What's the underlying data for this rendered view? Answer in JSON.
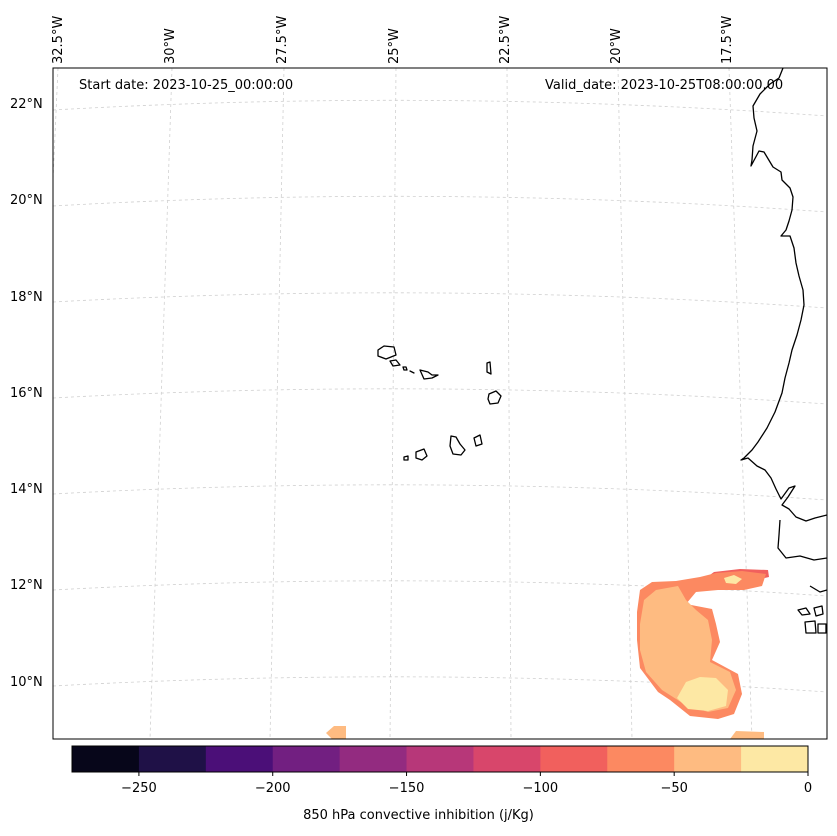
{
  "map": {
    "start_label": "Start date: 2023-10-25_00:00:00",
    "valid_label": "Valid_date: 2023-10-25T08:00:00.00",
    "lon_labels": [
      "32.5°W",
      "30°W",
      "27.5°W",
      "25°W",
      "22.5°W",
      "20°W",
      "17.5°W"
    ],
    "lat_labels": [
      "22°N",
      "20°N",
      "18°N",
      "16°N",
      "14°N",
      "12°N",
      "10°N"
    ],
    "extent": {
      "lon_min": -33.0,
      "lon_max": -16.0,
      "lat_min": 8.9,
      "lat_max": 22.8
    },
    "gridlines": "dashed light grey",
    "land_outline_color": "#000000"
  },
  "colorbar": {
    "label": "850 hPa convective inhibition (j/Kg)",
    "min": -275,
    "max": 0,
    "step": 25,
    "tick_values": [
      -250,
      -200,
      -150,
      -100,
      -50,
      0
    ],
    "tick_labels": [
      "−250",
      "−200",
      "−150",
      "−100",
      "−50",
      "0"
    ],
    "colors": [
      "#07061a",
      "#1f1147",
      "#4b0f78",
      "#721f81",
      "#932b80",
      "#b73779",
      "#d8466b",
      "#f1605d",
      "#fc8961",
      "#febb81",
      "#fde8a4"
    ]
  }
}
